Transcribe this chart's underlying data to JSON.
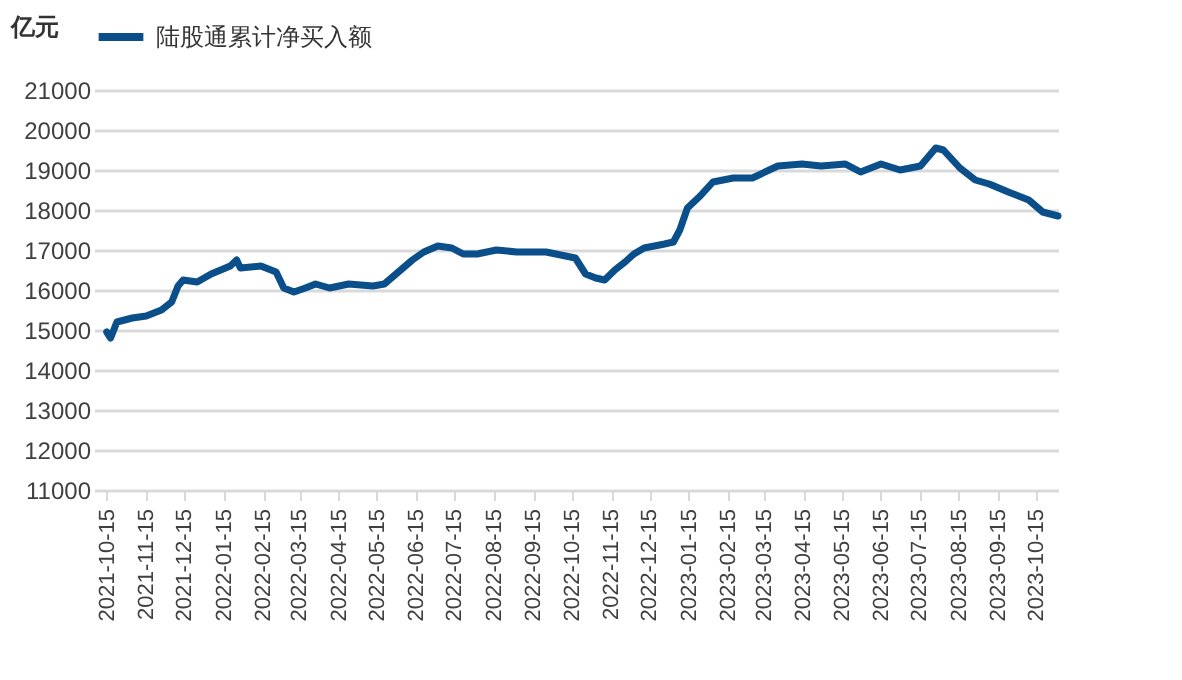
{
  "chart_data": {
    "type": "line",
    "ylabel": "亿元",
    "legend": "top",
    "grid": "y",
    "marker": "none",
    "line_style": "solid",
    "xlim": [
      "2021-10-05",
      "2023-11-01"
    ],
    "xticks": [
      "2021-10-15",
      "2021-11-15",
      "2021-12-15",
      "2022-01-15",
      "2022-02-15",
      "2022-03-15",
      "2022-04-15",
      "2022-05-15",
      "2022-06-15",
      "2022-07-15",
      "2022-08-15",
      "2022-09-15",
      "2022-10-15",
      "2022-11-15",
      "2022-12-15",
      "2023-01-15",
      "2023-02-15",
      "2023-03-15",
      "2023-04-15",
      "2023-05-15",
      "2023-06-15",
      "2023-07-15",
      "2023-08-15",
      "2023-09-15",
      "2023-10-15"
    ],
    "ylim": [
      11000,
      21000
    ],
    "yticks": [
      11000,
      12000,
      13000,
      14000,
      15000,
      16000,
      17000,
      18000,
      19000,
      20000,
      21000
    ],
    "x": [
      "2021-10-15",
      "2021-10-18",
      "2021-10-23",
      "2021-11-04",
      "2021-11-15",
      "2021-11-27",
      "2021-12-05",
      "2021-12-10",
      "2021-12-14",
      "2021-12-25",
      "2022-01-05",
      "2022-01-20",
      "2022-01-25",
      "2022-01-28",
      "2022-02-13",
      "2022-02-25",
      "2022-03-03",
      "2022-03-11",
      "2022-03-20",
      "2022-03-28",
      "2022-04-08",
      "2022-04-23",
      "2022-05-12",
      "2022-05-21",
      "2022-06-01",
      "2022-06-12",
      "2022-06-21",
      "2022-07-02",
      "2022-07-13",
      "2022-07-22",
      "2022-08-02",
      "2022-08-17",
      "2022-09-02",
      "2022-09-25",
      "2022-10-18",
      "2022-10-26",
      "2022-11-03",
      "2022-11-10",
      "2022-11-18",
      "2022-11-26",
      "2022-12-03",
      "2022-12-11",
      "2022-12-27",
      "2023-01-03",
      "2023-01-08",
      "2023-01-14",
      "2023-01-24",
      "2023-02-03",
      "2023-02-19",
      "2023-03-06",
      "2023-03-26",
      "2023-04-14",
      "2023-04-29",
      "2023-05-18",
      "2023-05-30",
      "2023-06-15",
      "2023-06-30",
      "2023-07-16",
      "2023-07-28",
      "2023-08-03",
      "2023-08-16",
      "2023-08-28",
      "2023-09-08",
      "2023-09-23",
      "2023-10-09",
      "2023-10-20",
      "2023-11-01"
    ],
    "series": [
      {
        "name": "陆股通累计净买入额",
        "color": "#0b4f8a",
        "values": [
          14950,
          14800,
          15200,
          15300,
          15350,
          15500,
          15700,
          16100,
          16250,
          16200,
          16400,
          16600,
          16750,
          16550,
          16600,
          16450,
          16050,
          15950,
          16050,
          16150,
          16050,
          16150,
          16100,
          16150,
          16450,
          16750,
          16950,
          17100,
          17050,
          16900,
          16900,
          17000,
          16950,
          16950,
          16800,
          16400,
          16300,
          16250,
          16500,
          16700,
          16900,
          17050,
          17150,
          17200,
          17500,
          18050,
          18350,
          18700,
          18800,
          18800,
          19100,
          19150,
          19100,
          19150,
          18950,
          19150,
          19000,
          19100,
          19550,
          19500,
          19050,
          18750,
          18650,
          18450,
          18250,
          17950,
          17850
        ]
      }
    ]
  }
}
